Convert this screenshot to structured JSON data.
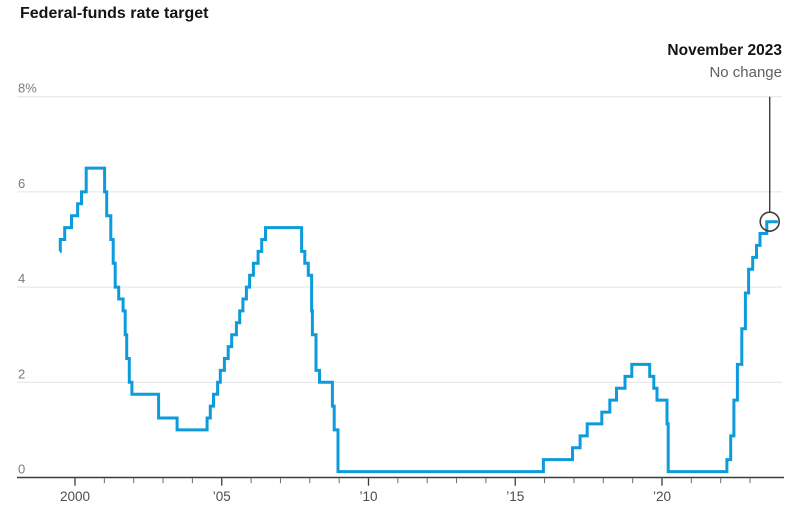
{
  "title": "Federal-funds rate target",
  "annotation": {
    "date": "November 2023",
    "note": "No change"
  },
  "chart_data": {
    "type": "line",
    "subtype": "step",
    "title": "Federal-funds rate target",
    "unit": "%",
    "xlabel": "",
    "ylabel": "",
    "ylim": [
      0,
      8
    ],
    "x_domain": [
      1999.49,
      2023.95
    ],
    "grid": "horizontal",
    "legend": "none",
    "line_color": "#0d9cdb",
    "annotation_color": "#3c3c3c",
    "y_ticks": [
      {
        "value": 0,
        "label": "0"
      },
      {
        "value": 2,
        "label": "2"
      },
      {
        "value": 4,
        "label": "4"
      },
      {
        "value": 6,
        "label": "6"
      },
      {
        "value": 8,
        "label": "8%"
      }
    ],
    "x_ticks": [
      {
        "year": 2000,
        "label": "2000"
      },
      {
        "year": 2005,
        "label": "’05"
      },
      {
        "year": 2010,
        "label": "’10"
      },
      {
        "year": 2015,
        "label": "’15"
      },
      {
        "year": 2020,
        "label": "’20"
      }
    ],
    "minor_tick_year_range": [
      2000,
      2023
    ],
    "series": [
      {
        "name": "Federal-funds rate target (midpoint of range)",
        "points": [
          [
            1999.49,
            4.75
          ],
          [
            1999.5,
            5.0
          ],
          [
            1999.65,
            5.25
          ],
          [
            1999.88,
            5.5
          ],
          [
            2000.09,
            5.75
          ],
          [
            2000.22,
            6.0
          ],
          [
            2000.38,
            6.5
          ],
          [
            2001.01,
            6.0
          ],
          [
            2001.08,
            5.5
          ],
          [
            2001.22,
            5.0
          ],
          [
            2001.3,
            4.5
          ],
          [
            2001.37,
            4.0
          ],
          [
            2001.49,
            3.75
          ],
          [
            2001.64,
            3.5
          ],
          [
            2001.71,
            3.0
          ],
          [
            2001.76,
            2.5
          ],
          [
            2001.85,
            2.0
          ],
          [
            2001.94,
            1.75
          ],
          [
            2002.85,
            1.25
          ],
          [
            2003.48,
            1.0
          ],
          [
            2004.5,
            1.25
          ],
          [
            2004.61,
            1.5
          ],
          [
            2004.72,
            1.75
          ],
          [
            2004.86,
            2.0
          ],
          [
            2004.95,
            2.25
          ],
          [
            2005.09,
            2.5
          ],
          [
            2005.22,
            2.75
          ],
          [
            2005.34,
            3.0
          ],
          [
            2005.5,
            3.25
          ],
          [
            2005.61,
            3.5
          ],
          [
            2005.72,
            3.75
          ],
          [
            2005.84,
            4.0
          ],
          [
            2005.95,
            4.25
          ],
          [
            2006.08,
            4.5
          ],
          [
            2006.24,
            4.75
          ],
          [
            2006.36,
            5.0
          ],
          [
            2006.49,
            5.25
          ],
          [
            2007.72,
            4.75
          ],
          [
            2007.83,
            4.5
          ],
          [
            2007.95,
            4.25
          ],
          [
            2008.06,
            3.5
          ],
          [
            2008.09,
            3.0
          ],
          [
            2008.21,
            2.25
          ],
          [
            2008.33,
            2.0
          ],
          [
            2008.77,
            1.5
          ],
          [
            2008.83,
            1.0
          ],
          [
            2008.96,
            0.125
          ],
          [
            2015.96,
            0.375
          ],
          [
            2016.95,
            0.625
          ],
          [
            2017.21,
            0.875
          ],
          [
            2017.45,
            1.125
          ],
          [
            2017.95,
            1.375
          ],
          [
            2018.22,
            1.625
          ],
          [
            2018.45,
            1.875
          ],
          [
            2018.74,
            2.125
          ],
          [
            2018.97,
            2.375
          ],
          [
            2019.58,
            2.125
          ],
          [
            2019.72,
            1.875
          ],
          [
            2019.83,
            1.625
          ],
          [
            2020.17,
            1.125
          ],
          [
            2020.21,
            0.125
          ],
          [
            2022.21,
            0.375
          ],
          [
            2022.34,
            0.875
          ],
          [
            2022.45,
            1.625
          ],
          [
            2022.57,
            2.375
          ],
          [
            2022.72,
            3.125
          ],
          [
            2022.84,
            3.875
          ],
          [
            2022.95,
            4.375
          ],
          [
            2023.09,
            4.625
          ],
          [
            2023.22,
            4.875
          ],
          [
            2023.34,
            5.125
          ],
          [
            2023.57,
            5.375
          ]
        ]
      }
    ],
    "endpoint": {
      "year": 2023.67,
      "value": 5.375,
      "label_date": "November 2023",
      "label_note": "No change"
    }
  }
}
